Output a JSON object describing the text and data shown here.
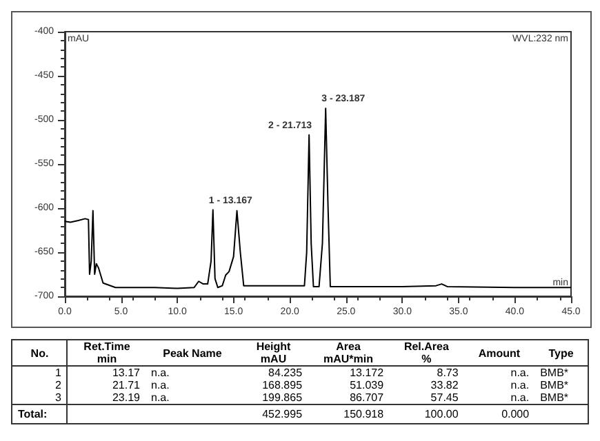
{
  "chart_data": [
    {
      "type": "line",
      "ylabel": "mAU",
      "xlabel": "min",
      "color": "#000000",
      "x": [
        0,
        0.5,
        1.2,
        1.8,
        2.1,
        2.2,
        2.35,
        2.5,
        2.65,
        2.8,
        3.0,
        3.4,
        4.5,
        8,
        10,
        11.5,
        11.9,
        12.3,
        12.7,
        13.0,
        13.167,
        13.35,
        13.6,
        14.0,
        14.3,
        14.6,
        15.0,
        15.3,
        15.6,
        15.9,
        17,
        21.3,
        21.5,
        21.713,
        21.9,
        22.1,
        22.6,
        22.9,
        23.187,
        23.4,
        23.6,
        25,
        30,
        33,
        33.5,
        34,
        40,
        45
      ],
      "values": [
        -615,
        -616,
        -614,
        -612,
        -613,
        -675,
        -660,
        -603,
        -675,
        -663,
        -668,
        -685,
        -690,
        -690,
        -691,
        -690,
        -683,
        -686,
        -686,
        -660,
        -602,
        -680,
        -690,
        -688,
        -676,
        -672,
        -655,
        -603,
        -650,
        -688,
        -688,
        -688,
        -650,
        -517,
        -640,
        -689,
        -689,
        -640,
        -487,
        -600,
        -689,
        -689,
        -689,
        -688,
        -686,
        -689,
        -690,
        -690
      ],
      "xlim": [
        0,
        45
      ],
      "xticks": [
        {
          "value": 0,
          "label": "0.0"
        },
        {
          "value": 5,
          "label": "5.0"
        },
        {
          "value": 10,
          "label": "10.0"
        },
        {
          "value": 15,
          "label": "15.0"
        },
        {
          "value": 20,
          "label": "20.0"
        },
        {
          "value": 25,
          "label": "25.0"
        },
        {
          "value": 30,
          "label": "30.0"
        },
        {
          "value": 35,
          "label": "35.0"
        },
        {
          "value": 40,
          "label": "40.0"
        },
        {
          "value": 45,
          "label": "45.0"
        }
      ],
      "ylim": [
        -700,
        -400
      ],
      "yticks": [
        -700,
        -650,
        -600,
        -550,
        -500,
        -450,
        -400
      ],
      "grid": false,
      "marker": "none",
      "line_style": "solid",
      "annotations": [
        "WVL:232 nm",
        {
          "text": "1 - 13.167",
          "x": 13.167,
          "y": -602
        },
        {
          "text": "2 - 21.713",
          "x": 21.713,
          "y": -517
        },
        {
          "text": "3 - 23.187",
          "x": 23.187,
          "y": -487
        }
      ]
    },
    {
      "type": "other",
      "categories": [
        "No.",
        "Ret.Time\nmin",
        "Peak Name",
        "Height\nmAU",
        "Area\nmAU*min",
        "Rel.Area\n%",
        "Amount",
        "Type"
      ],
      "cell_labels": [
        [
          "1",
          "13.17",
          "n.a.",
          "84.235",
          "13.172",
          "8.73",
          "n.a.",
          "BMB*"
        ],
        [
          "2",
          "21.71",
          "n.a.",
          "168.895",
          "51.039",
          "33.82",
          "n.a.",
          "BMB*"
        ],
        [
          "3",
          "23.19",
          "n.a.",
          "199.865",
          "86.707",
          "57.45",
          "n.a.",
          "BMB*"
        ],
        [
          "Total:",
          null,
          null,
          "452.995",
          "150.918",
          "100.00",
          "0.000",
          null
        ]
      ]
    }
  ]
}
